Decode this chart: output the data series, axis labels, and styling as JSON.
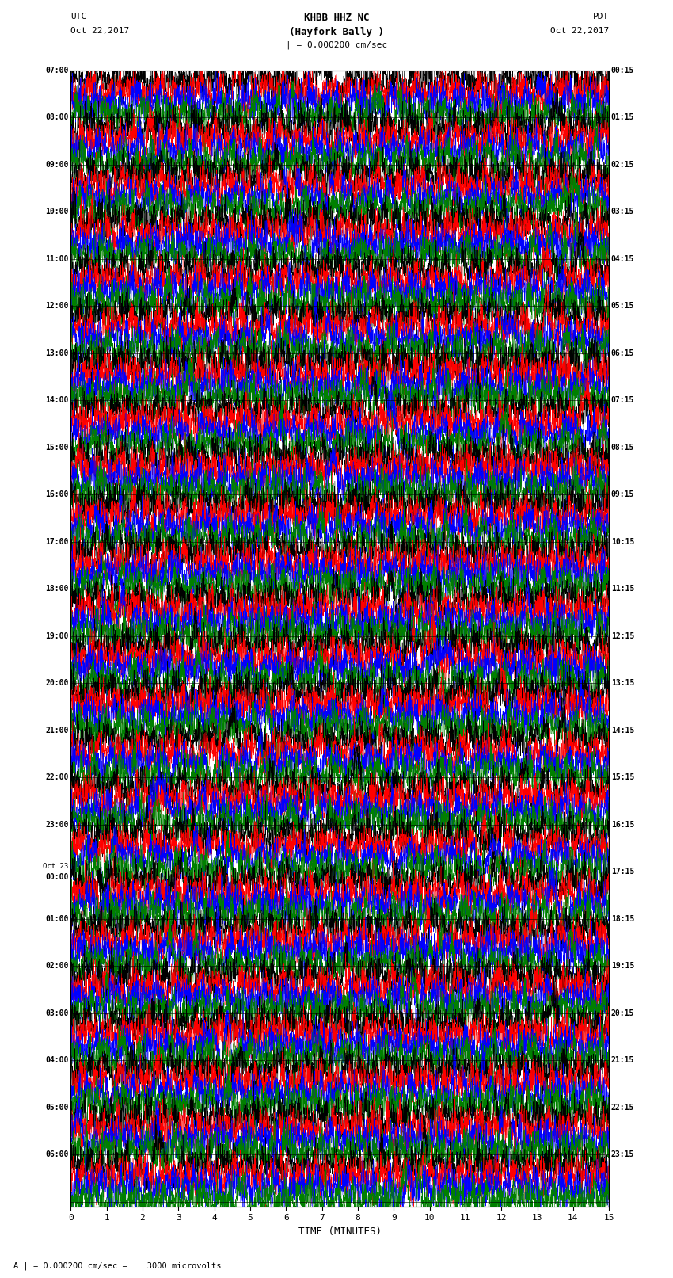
{
  "title_line1": "KHBB HHZ NC",
  "title_line2": "(Hayfork Bally )",
  "title_line3": "| = 0.000200 cm/sec",
  "left_header_line1": "UTC",
  "left_header_line2": "Oct 22,2017",
  "right_header_line1": "PDT",
  "right_header_line2": "Oct 22,2017",
  "xlabel": "TIME (MINUTES)",
  "footer": "A | = 0.000200 cm/sec =    3000 microvolts",
  "x_ticks": [
    0,
    1,
    2,
    3,
    4,
    5,
    6,
    7,
    8,
    9,
    10,
    11,
    12,
    13,
    14,
    15
  ],
  "left_times_utc": [
    "07:00",
    "08:00",
    "09:00",
    "10:00",
    "11:00",
    "12:00",
    "13:00",
    "14:00",
    "15:00",
    "16:00",
    "17:00",
    "18:00",
    "19:00",
    "20:00",
    "21:00",
    "22:00",
    "23:00",
    "Oct 23\n00:00",
    "01:00",
    "02:00",
    "03:00",
    "04:00",
    "05:00",
    "06:00"
  ],
  "right_times_pdt": [
    "00:15",
    "01:15",
    "02:15",
    "03:15",
    "04:15",
    "05:15",
    "06:15",
    "07:15",
    "08:15",
    "09:15",
    "10:15",
    "11:15",
    "12:15",
    "13:15",
    "14:15",
    "15:15",
    "16:15",
    "17:15",
    "18:15",
    "19:15",
    "20:15",
    "21:15",
    "22:15",
    "23:15"
  ],
  "n_hour_rows": 24,
  "n_traces_per_row": 4,
  "n_points": 3600,
  "colors_cycle": [
    "black",
    "red",
    "blue",
    "green"
  ],
  "fig_width": 8.5,
  "fig_height": 16.13,
  "dpi": 100,
  "background_color": "white",
  "axes_color": "black",
  "font_family": "monospace"
}
